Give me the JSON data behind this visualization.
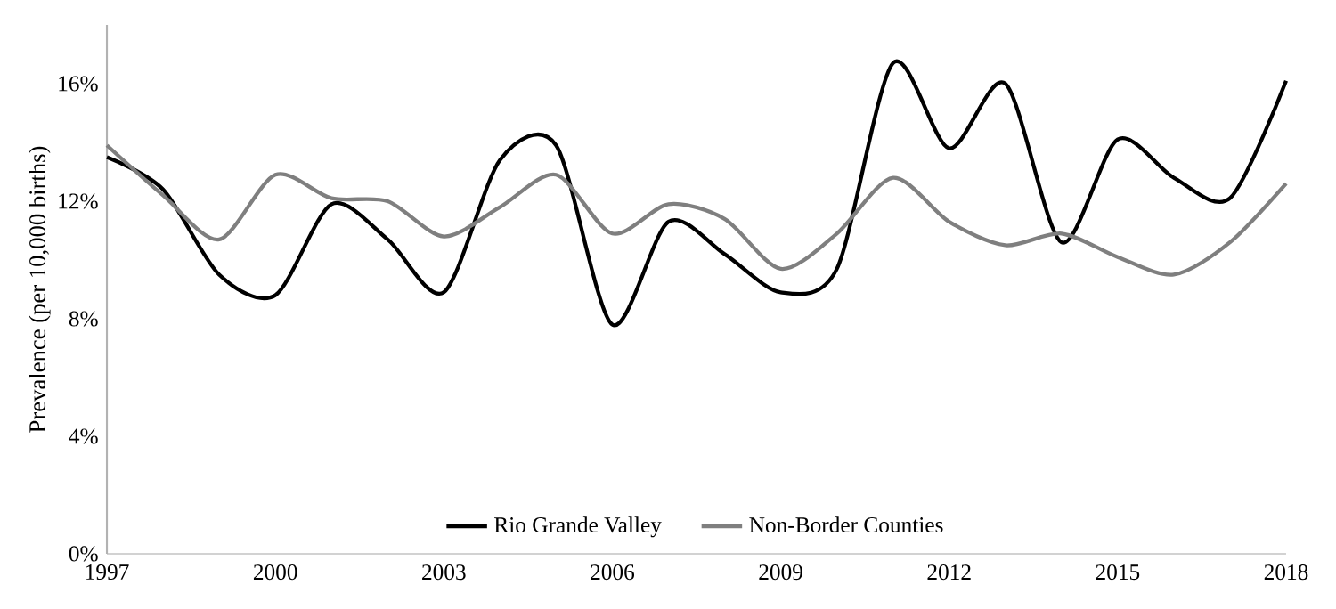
{
  "chart_data": {
    "type": "line",
    "ylabel": "Prevalence (per 10,000 births)",
    "x": [
      1997,
      1998,
      1999,
      2000,
      2001,
      2002,
      2003,
      2004,
      2005,
      2006,
      2007,
      2008,
      2009,
      2010,
      2011,
      2012,
      2013,
      2014,
      2015,
      2016,
      2017,
      2018
    ],
    "series": [
      {
        "name": "Rio Grande Valley",
        "color": "#000000",
        "values": [
          13.5,
          12.4,
          9.5,
          8.8,
          11.9,
          10.7,
          8.9,
          13.4,
          13.9,
          7.8,
          11.3,
          10.2,
          8.9,
          9.7,
          16.7,
          13.8,
          16.0,
          10.6,
          14.1,
          12.8,
          12.1,
          16.1
        ]
      },
      {
        "name": "Non-Border Counties",
        "color": "#7f7f7f",
        "values": [
          13.9,
          12.2,
          10.7,
          12.9,
          12.1,
          12.0,
          10.8,
          11.8,
          12.9,
          10.9,
          11.9,
          11.4,
          9.7,
          10.9,
          12.8,
          11.3,
          10.5,
          10.9,
          10.1,
          9.5,
          10.6,
          12.6
        ]
      }
    ],
    "xlim": [
      1997,
      2018
    ],
    "xticks": [
      1997,
      2000,
      2003,
      2006,
      2009,
      2012,
      2015,
      2018
    ],
    "ylim": [
      0,
      18
    ],
    "yticks": [
      {
        "value": 0,
        "label": "0%"
      },
      {
        "value": 4,
        "label": "4%"
      },
      {
        "value": 8,
        "label": "8%"
      },
      {
        "value": 12,
        "label": "12%"
      },
      {
        "value": 16,
        "label": "16%"
      }
    ],
    "legend": "bottom"
  }
}
